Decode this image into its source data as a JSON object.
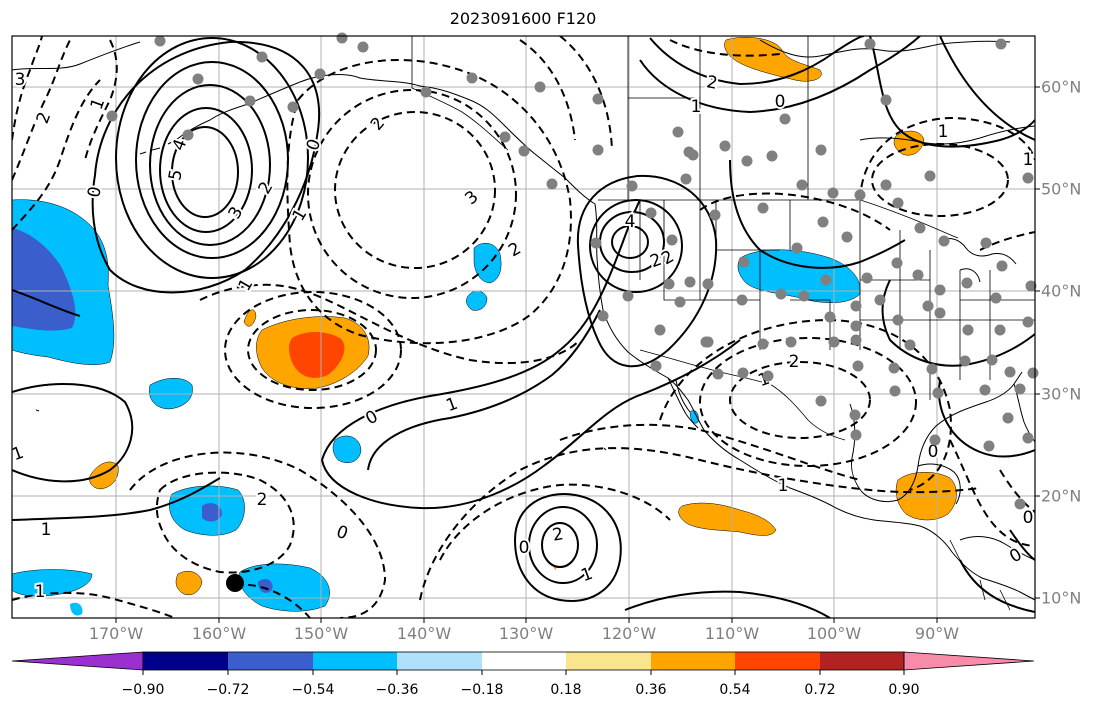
{
  "title": "2023091600 F120",
  "map": {
    "lon_ticks": [
      "170°W",
      "160°W",
      "150°W",
      "140°W",
      "130°W",
      "120°W",
      "110°W",
      "100°W",
      "90°W"
    ],
    "lat_ticks": [
      "60°N",
      "50°N",
      "40°N",
      "30°N",
      "20°N",
      "10°N"
    ],
    "contour_labels": [
      "3",
      "2",
      "1",
      "0",
      "5",
      "4",
      "3",
      "2",
      "1",
      "0",
      "1",
      "2",
      "3",
      "0",
      "1",
      "2",
      "0",
      "2",
      "1",
      "2",
      "4",
      "2",
      "2",
      "1",
      "0",
      "2",
      "1",
      "0",
      "1",
      "1",
      "2",
      "1",
      "0",
      "1",
      "0",
      "1",
      "0",
      "1"
    ],
    "point_marker_color": "#808080",
    "highlight_marker_color": "#000000",
    "grid": true
  },
  "colorbar": {
    "tick_labels": [
      "−0.90",
      "−0.72",
      "−0.54",
      "−0.36",
      "−0.18",
      "0.18",
      "0.36",
      "0.54",
      "0.72",
      "0.90"
    ],
    "colors": [
      "#9b30d0",
      "#00008b",
      "#3a5fcd",
      "#00bfff",
      "#b0e0fa",
      "#ffffff",
      "#fbe58c",
      "#ffa500",
      "#ff4500",
      "#b22222",
      "#f88aaa"
    ]
  }
}
